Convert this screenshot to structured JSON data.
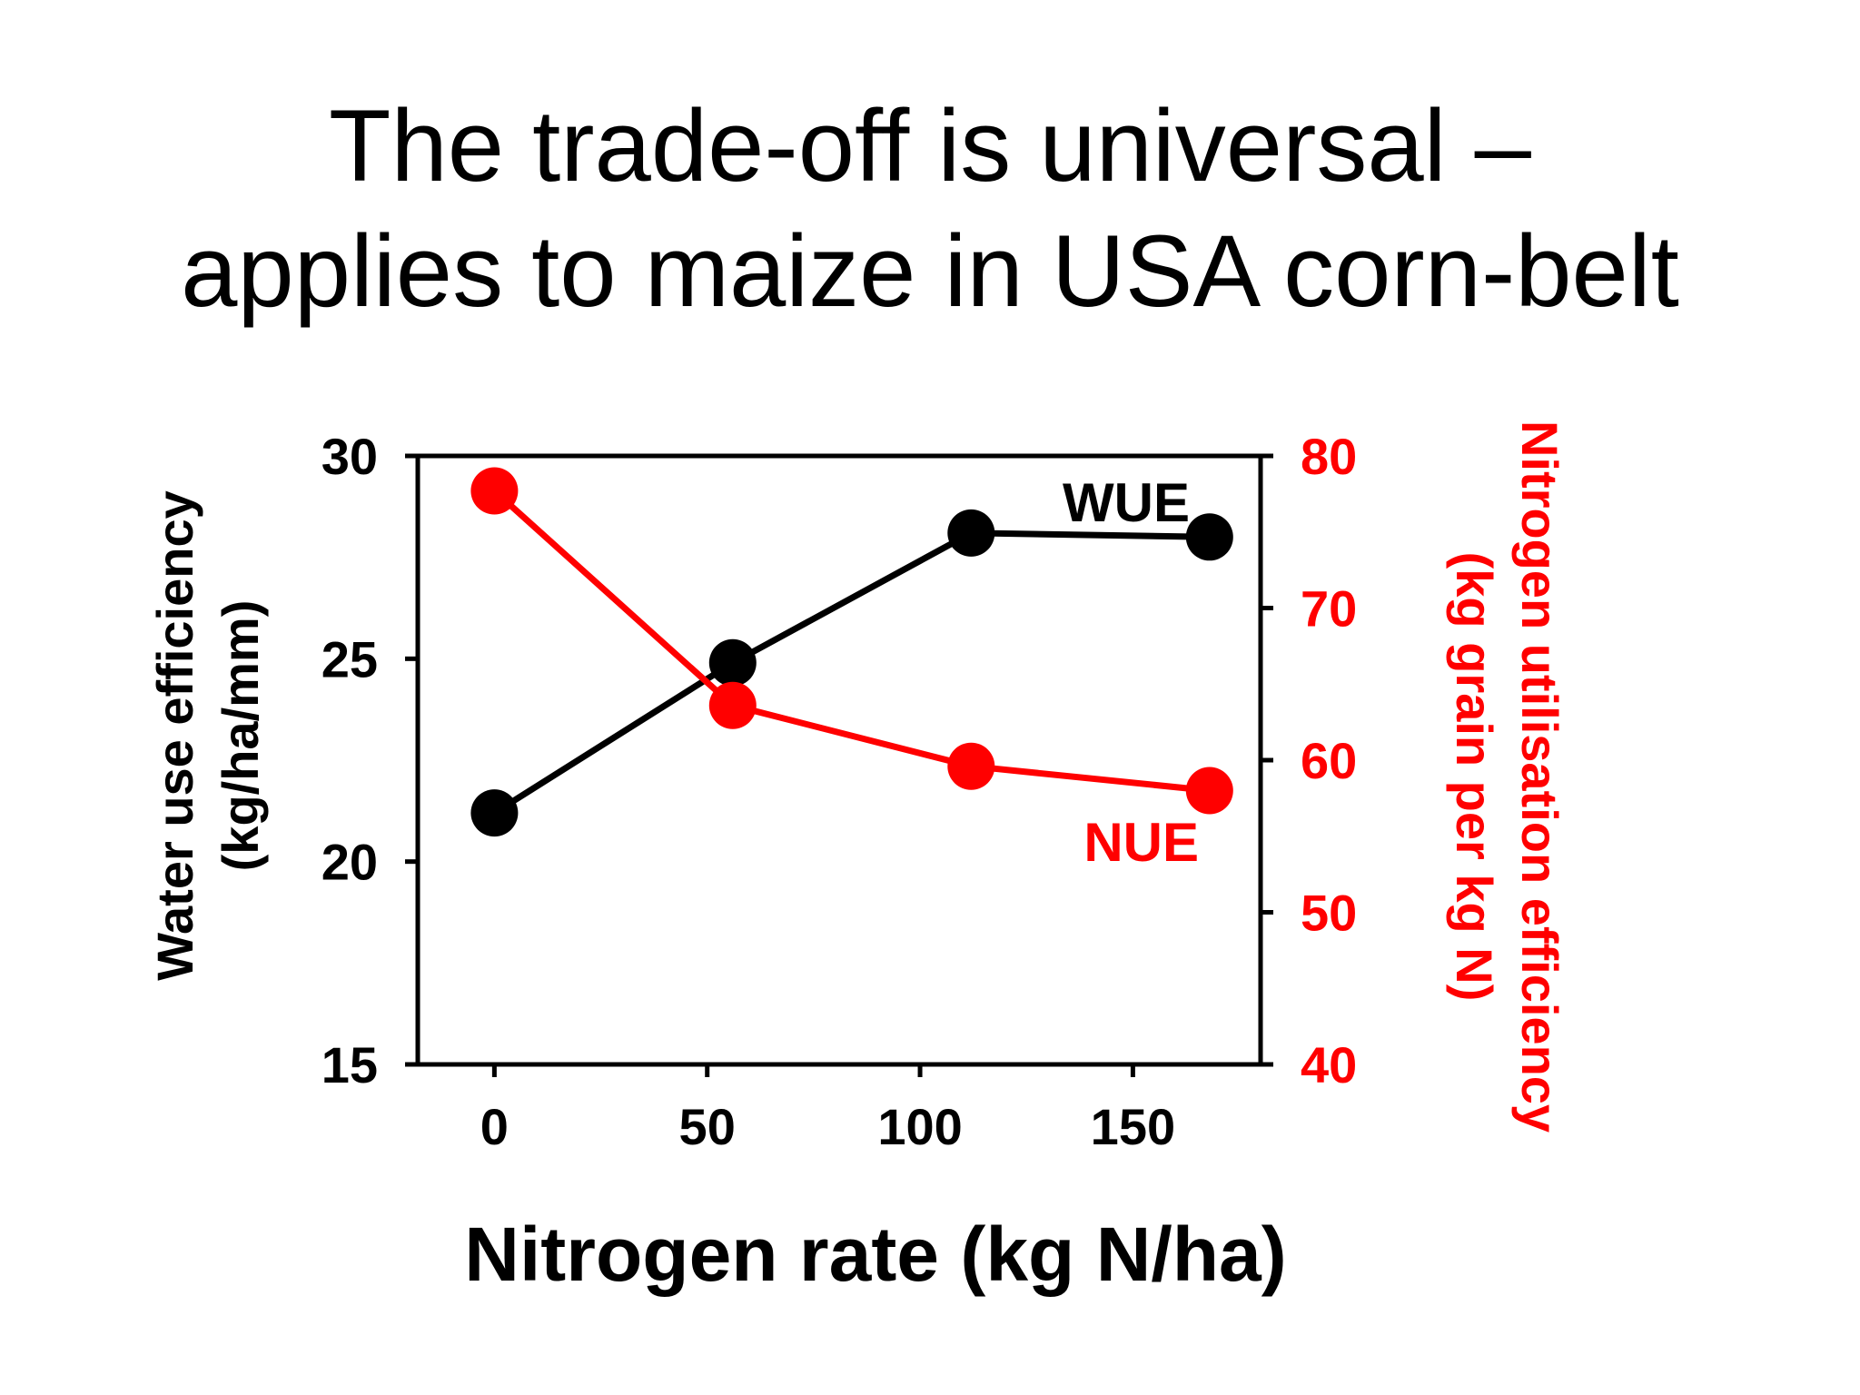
{
  "slide": {
    "title_line1": "The trade-off is universal –",
    "title_line2": "applies to maize in USA corn-belt"
  },
  "chart_data": {
    "type": "line",
    "x": [
      0,
      56,
      112,
      168
    ],
    "xlabel": "Nitrogen rate (kg N/ha)",
    "xlim": [
      -18,
      180
    ],
    "xticks": [
      0,
      50,
      100,
      150
    ],
    "y_left": {
      "label_line1": "Water use efficiency",
      "label_line2": "(kg/ha/mm)",
      "lim": [
        15,
        30
      ],
      "ticks": [
        15,
        20,
        25,
        30
      ],
      "color": "#000000"
    },
    "y_right": {
      "label_line1": "Nitrogen utilisation efficiency",
      "label_line2": "(kg grain per kg N)",
      "lim": [
        40,
        80
      ],
      "ticks": [
        40,
        50,
        60,
        70,
        80
      ],
      "color": "#ff0000"
    },
    "series": [
      {
        "name": "WUE",
        "axis": "left",
        "color": "#000000",
        "values": [
          21.2,
          24.9,
          28.1,
          28.0
        ]
      },
      {
        "name": "NUE",
        "axis": "right",
        "color": "#ff0000",
        "values": [
          77.7,
          63.6,
          59.6,
          58.0
        ]
      }
    ],
    "grid": false
  }
}
